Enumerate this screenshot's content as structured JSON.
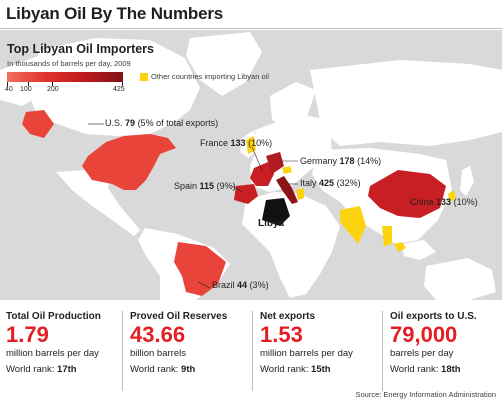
{
  "title": "Libyan Oil By The Numbers",
  "legend": {
    "title": "Top Libyan Oil Importers",
    "subtitle": "In thousands of barrels per day, 2009",
    "scale_ticks": [
      "40",
      "100",
      "200",
      "425"
    ],
    "other_label": "Other countries importing Libyan oil"
  },
  "colors": {
    "importer_low": "#e8443a",
    "importer_mid": "#c81e24",
    "importer_high": "#8b1518",
    "other_importer": "#fdd20f",
    "libya": "#111111",
    "land": "#ffffff",
    "ocean": "#d9d9d9",
    "accent_text": "#e31e24"
  },
  "countries": [
    {
      "name": "U.S.",
      "value": "79",
      "share": "(5% of total exports)"
    },
    {
      "name": "France",
      "value": "133",
      "share": "(10%)"
    },
    {
      "name": "Germany",
      "value": "178",
      "share": "(14%)"
    },
    {
      "name": "Italy",
      "value": "425",
      "share": "(32%)"
    },
    {
      "name": "Spain",
      "value": "115",
      "share": "(9%)"
    },
    {
      "name": "China",
      "value": "133",
      "share": "(10%)"
    },
    {
      "name": "Brazil",
      "value": "44",
      "share": "(3%)"
    }
  ],
  "libya_label": "Libya",
  "stats": [
    {
      "heading": "Total Oil Production",
      "value": "1.79",
      "unit": "million barrels per day",
      "rank_label": "World rank:",
      "rank": "17th"
    },
    {
      "heading": "Proved Oil Reserves",
      "value": "43.66",
      "unit": "billion barrels",
      "rank_label": "World rank:",
      "rank": "9th"
    },
    {
      "heading": "Net exports",
      "value": "1.53",
      "unit": "million barrels per day",
      "rank_label": "World rank:",
      "rank": "15th"
    },
    {
      "heading": "Oil exports to U.S.",
      "value": "79,000",
      "unit": "barrels per day",
      "rank_label": "World rank:",
      "rank": "18th"
    }
  ],
  "source": "Source: Energy Information  Administration"
}
